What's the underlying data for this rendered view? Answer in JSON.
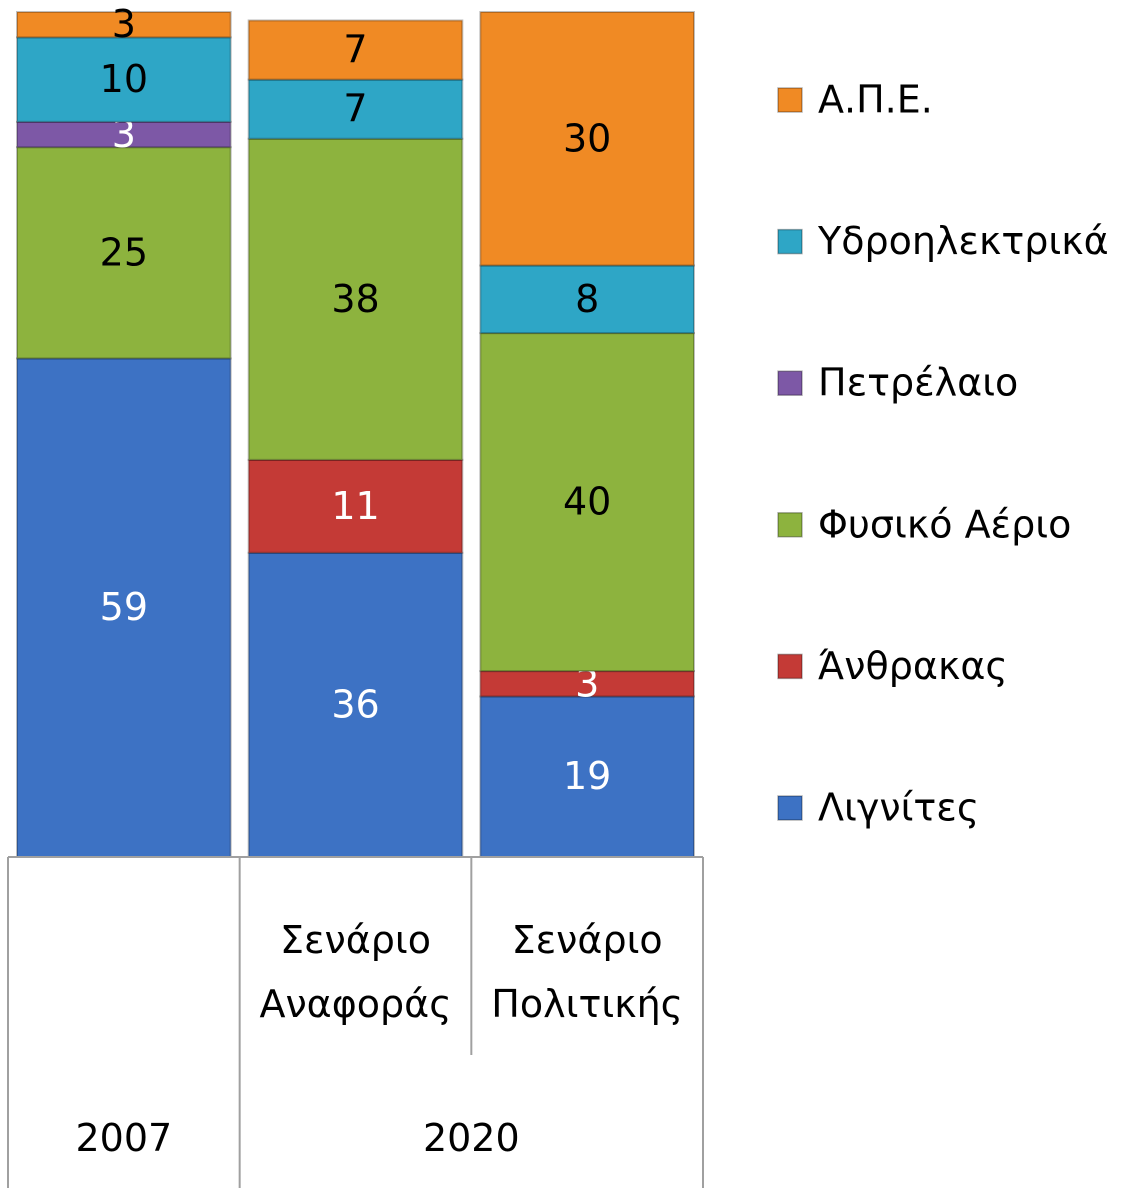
{
  "chart_data": {
    "type": "stacked_bar",
    "categories": [
      null,
      "Σενάριο Αναφοράς",
      "Σενάριο Πολιτικής"
    ],
    "category_groups": [
      {
        "label": "2007",
        "span": 1
      },
      {
        "label": "2020",
        "span": 2
      }
    ],
    "ylim": [
      0,
      100
    ],
    "legend": "right",
    "series": [
      {
        "name": "Λιγνίτες",
        "color": "#3d72c4",
        "label_color": "#ffffff",
        "values": [
          59,
          36,
          19
        ]
      },
      {
        "name": "Άνθρακας",
        "color": "#c43a36",
        "label_color": "#ffffff",
        "values": [
          null,
          11,
          3
        ]
      },
      {
        "name": "Φυσικό Αέριο",
        "color": "#8db33e",
        "label_color": "#000000",
        "values": [
          25,
          38,
          40
        ]
      },
      {
        "name": "Πετρέλαιο",
        "color": "#7d58a6",
        "label_color": "#ffffff",
        "values": [
          3,
          null,
          null
        ]
      },
      {
        "name": "Υδροηλεκτρικά",
        "color": "#2ea6c6",
        "label_color": "#000000",
        "values": [
          10,
          7,
          8
        ]
      },
      {
        "name": "Α.Π.Ε.",
        "color": "#f08a24",
        "label_color": "#000000",
        "values": [
          3,
          7,
          30
        ]
      }
    ]
  }
}
